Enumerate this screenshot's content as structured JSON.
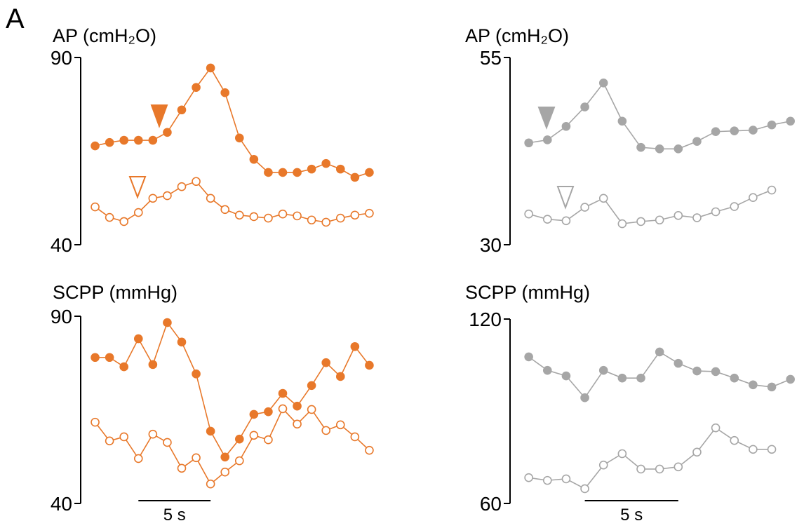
{
  "panel_label": "A",
  "chart_data": [
    {
      "type": "line",
      "ylabel": "AP (cmH₂O)",
      "ylim": [
        40,
        90
      ],
      "yticks": [
        40,
        90
      ],
      "xlim": [
        -1,
        20
      ],
      "series": [
        {
          "marker": "filled",
          "color": "#e8782a",
          "x": [
            0,
            1,
            2,
            3,
            4,
            5,
            6,
            7,
            8,
            9,
            10,
            11,
            12,
            13,
            14,
            15,
            16,
            17,
            18,
            19
          ],
          "values": [
            66.4,
            67.3,
            67.9,
            67.9,
            67.9,
            70.0,
            76.0,
            82.0,
            87.2,
            80.6,
            68.5,
            62.8,
            59.3,
            59.3,
            59.3,
            60.2,
            61.7,
            60.2,
            58.0,
            59.3
          ]
        },
        {
          "marker": "open",
          "color": "#e8782a",
          "x": [
            0,
            1,
            2,
            3,
            4,
            5,
            6,
            7,
            8,
            9,
            10,
            11,
            12,
            13,
            14,
            15,
            16,
            17,
            18,
            19
          ],
          "values": [
            50.1,
            47.3,
            46.2,
            48.6,
            52.4,
            53.1,
            55.5,
            56.9,
            52.4,
            49.4,
            47.9,
            47.5,
            47.1,
            48.2,
            47.7,
            46.6,
            46.0,
            47.1,
            47.9,
            48.4
          ]
        }
      ]
    },
    {
      "type": "line",
      "ylabel": "AP (cmH₂O)",
      "ylim": [
        30,
        55
      ],
      "yticks": [
        30,
        55
      ],
      "xlim": [
        -1,
        14.5
      ],
      "series": [
        {
          "marker": "filled",
          "color": "#a6a6a6",
          "x": [
            0,
            1,
            2,
            3,
            4,
            5,
            6,
            7,
            8,
            9,
            10,
            11,
            12,
            13,
            14
          ],
          "values": [
            43.6,
            44.0,
            45.8,
            48.4,
            51.6,
            46.5,
            43.0,
            42.8,
            42.8,
            43.8,
            45.1,
            45.2,
            45.3,
            46.0,
            46.5
          ]
        },
        {
          "marker": "open",
          "color": "#a6a6a6",
          "x": [
            0,
            1,
            2,
            3,
            4,
            5,
            6,
            7,
            8,
            9,
            10,
            11,
            12,
            13
          ],
          "values": [
            34.1,
            33.4,
            33.2,
            35.0,
            36.2,
            32.8,
            33.1,
            33.3,
            33.9,
            33.6,
            34.4,
            35.1,
            36.3,
            37.3
          ]
        }
      ]
    },
    {
      "type": "line",
      "ylabel": "SCPP (mmHg)",
      "ylim": [
        40,
        90
      ],
      "yticks": [
        40,
        90
      ],
      "xlim": [
        -1,
        20
      ],
      "scalebar": {
        "length": 5,
        "label": "5 s"
      },
      "series": [
        {
          "marker": "filled",
          "color": "#e8782a",
          "x": [
            0,
            1,
            2,
            3,
            4,
            5,
            6,
            7,
            8,
            9,
            10,
            11,
            12,
            13,
            14,
            15,
            16,
            17,
            18,
            19
          ],
          "values": [
            79.0,
            79.0,
            76.5,
            84.0,
            77.1,
            88.3,
            83.1,
            74.6,
            59.3,
            52.4,
            57.2,
            63.8,
            64.5,
            69.4,
            66.0,
            71.5,
            77.6,
            73.9,
            81.9,
            76.9
          ]
        },
        {
          "marker": "open",
          "color": "#e8782a",
          "x": [
            0,
            1,
            2,
            3,
            4,
            5,
            6,
            7,
            8,
            9,
            10,
            11,
            12,
            13,
            14,
            15,
            16,
            17,
            18,
            19
          ],
          "values": [
            61.7,
            56.7,
            57.8,
            52.0,
            58.5,
            56.3,
            49.4,
            52.2,
            45.2,
            48.4,
            51.4,
            58.2,
            57.0,
            65.3,
            61.2,
            65.1,
            59.5,
            61.0,
            57.8,
            54.2
          ]
        }
      ]
    },
    {
      "type": "line",
      "ylabel": "SCPP (mmHg)",
      "ylim": [
        60,
        120
      ],
      "yticks": [
        60,
        120
      ],
      "xlim": [
        -1,
        14.5
      ],
      "scalebar": {
        "length": 5,
        "label": "5 s"
      },
      "series": [
        {
          "marker": "filled",
          "color": "#a6a6a6",
          "x": [
            0,
            1,
            2,
            3,
            4,
            5,
            6,
            7,
            8,
            9,
            10,
            11,
            12,
            13,
            14
          ],
          "values": [
            107.7,
            103.3,
            101.5,
            94.4,
            103.3,
            100.8,
            100.8,
            109.3,
            105.6,
            103.1,
            102.9,
            100.8,
            98.6,
            97.9,
            100.4
          ]
        },
        {
          "marker": "open",
          "color": "#a6a6a6",
          "x": [
            0,
            1,
            2,
            3,
            4,
            5,
            6,
            7,
            8,
            9,
            10,
            11,
            12,
            13
          ],
          "values": [
            68.4,
            67.5,
            68.0,
            64.8,
            72.5,
            76.2,
            71.2,
            71.2,
            71.9,
            76.7,
            84.6,
            80.5,
            77.6,
            77.6
          ]
        }
      ]
    }
  ]
}
